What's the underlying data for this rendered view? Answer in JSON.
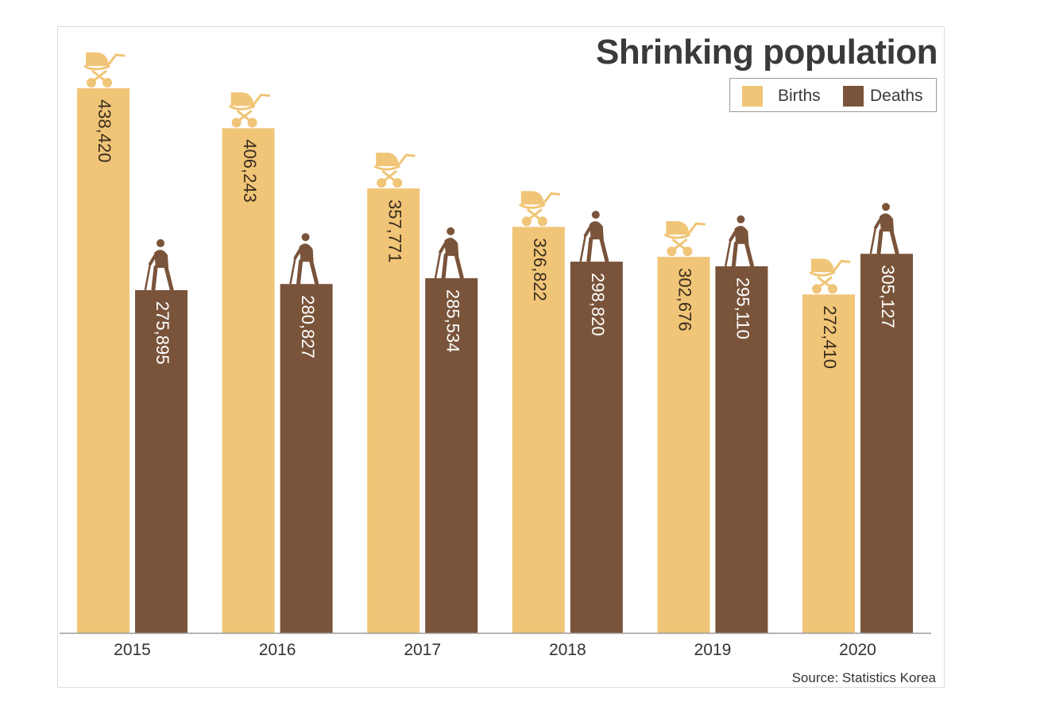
{
  "chart_data": {
    "type": "bar",
    "title": "Shrinking population",
    "categories": [
      "2015",
      "2016",
      "2017",
      "2018",
      "2019",
      "2020"
    ],
    "series": [
      {
        "name": "Births",
        "color": "#f0c577",
        "icon": "baby-carriage-icon",
        "values": [
          438420,
          406243,
          357771,
          326822,
          302676,
          272410
        ],
        "labels": [
          "438,420",
          "406,243",
          "357,771",
          "326,822",
          "302,676",
          "272,410"
        ]
      },
      {
        "name": "Deaths",
        "color": "#7a543a",
        "icon": "elderly-person-icon",
        "values": [
          275895,
          280827,
          285534,
          298820,
          295110,
          305127
        ],
        "labels": [
          "275,895",
          "280,827",
          "285,534",
          "298,820",
          "295,110",
          "305,127"
        ]
      }
    ],
    "ylim": [
      0,
      500000
    ],
    "xlabel": "",
    "ylabel": "",
    "legend": [
      "Births",
      "Deaths"
    ],
    "legend_position": "top-right",
    "grid": false,
    "source": "Source: Statistics Korea"
  }
}
